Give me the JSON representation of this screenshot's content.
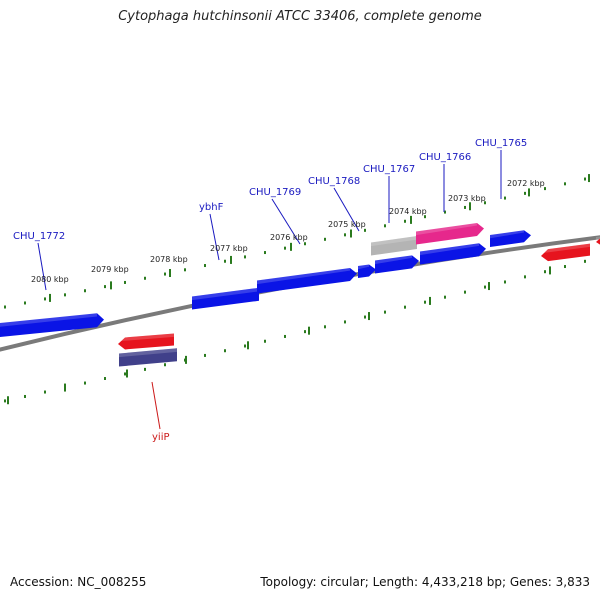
{
  "title": "Cytophaga hutchinsonii ATCC 33406, complete genome",
  "footer": {
    "accession": "Accession: NC_008255",
    "summary": "Topology: circular; Length: 4,433,218 bp; Genes: 3,833"
  },
  "colors": {
    "backbone": "#7a7a7a",
    "tick": "#2a7a1e",
    "forward_gene": "#0a14e6",
    "reverse_gene": "#e6141e",
    "reverse_dark_gene": "#40408a",
    "grey_gene": "#b4b4b4",
    "pink_gene": "#e6288c",
    "forward_label": "#1a1ac0",
    "reverse_label": "#cc1a1a"
  },
  "ticks": [
    {
      "label": "2080 kbp"
    },
    {
      "label": "2079 kbp"
    },
    {
      "label": "2078 kbp"
    },
    {
      "label": "2077 kbp"
    },
    {
      "label": "2076 kbp"
    },
    {
      "label": "2075 kbp"
    },
    {
      "label": "2074 kbp"
    },
    {
      "label": "2073 kbp"
    },
    {
      "label": "2072 kbp"
    }
  ],
  "labels": [
    {
      "text": "CHU_1772",
      "strand": "forward"
    },
    {
      "text": "ybhF",
      "strand": "forward"
    },
    {
      "text": "CHU_1769",
      "strand": "forward"
    },
    {
      "text": "CHU_1768",
      "strand": "forward"
    },
    {
      "text": "CHU_1767",
      "strand": "forward"
    },
    {
      "text": "CHU_1766",
      "strand": "forward"
    },
    {
      "text": "CHU_1765",
      "strand": "forward"
    },
    {
      "text": "yiiP",
      "strand": "reverse"
    }
  ]
}
